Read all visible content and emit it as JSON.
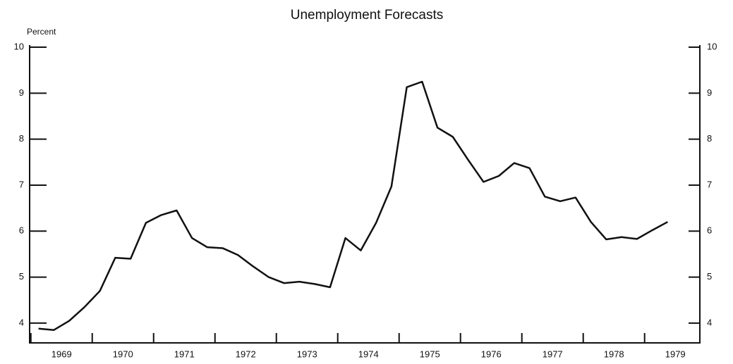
{
  "chart_data": {
    "type": "line",
    "title": "Unemployment Forecasts",
    "y_label": "Percent",
    "x": [
      1969.125,
      1969.375,
      1969.625,
      1969.875,
      1970.125,
      1970.375,
      1970.625,
      1970.875,
      1971.125,
      1971.375,
      1971.625,
      1971.875,
      1972.125,
      1972.375,
      1972.625,
      1972.875,
      1973.125,
      1973.375,
      1973.625,
      1973.875,
      1974.125,
      1974.375,
      1974.625,
      1974.875,
      1975.125,
      1975.375,
      1975.625,
      1975.875,
      1976.125,
      1976.375,
      1976.625,
      1976.875,
      1977.125,
      1977.375,
      1977.625,
      1977.875,
      1978.125,
      1978.375,
      1978.625,
      1978.875,
      1979.125,
      1979.375
    ],
    "series": [
      {
        "name": "Unemployment",
        "color": "#111111",
        "values": [
          3.88,
          3.85,
          4.05,
          4.35,
          4.7,
          5.42,
          5.4,
          6.18,
          6.35,
          6.45,
          5.85,
          5.65,
          5.63,
          5.48,
          5.23,
          5.0,
          4.87,
          4.9,
          4.85,
          4.78,
          5.85,
          5.58,
          6.18,
          6.97,
          9.13,
          9.25,
          8.25,
          8.05,
          7.55,
          7.07,
          7.2,
          7.48,
          7.37,
          6.75,
          6.65,
          6.73,
          6.2,
          5.82,
          5.87,
          5.83,
          6.02,
          6.2
        ]
      }
    ],
    "xlim": [
      1968.98,
      1979.9
    ],
    "xticks": [
      {
        "value": 1969,
        "label": "1969"
      },
      {
        "value": 1970,
        "label": "1970"
      },
      {
        "value": 1971,
        "label": "1971"
      },
      {
        "value": 1972,
        "label": "1972"
      },
      {
        "value": 1973,
        "label": "1973"
      },
      {
        "value": 1974,
        "label": "1974"
      },
      {
        "value": 1975,
        "label": "1975"
      },
      {
        "value": 1976,
        "label": "1976"
      },
      {
        "value": 1977,
        "label": "1977"
      },
      {
        "value": 1978,
        "label": "1978"
      },
      {
        "value": 1979,
        "label": "1979"
      }
    ],
    "ylim": [
      3.57,
      10
    ],
    "yticks": [
      4,
      5,
      6,
      7,
      8,
      9,
      10
    ],
    "y2lim": [
      3.57,
      10
    ],
    "y2ticks": [
      4,
      5,
      6,
      7,
      8,
      9,
      10
    ],
    "grid": false
  }
}
